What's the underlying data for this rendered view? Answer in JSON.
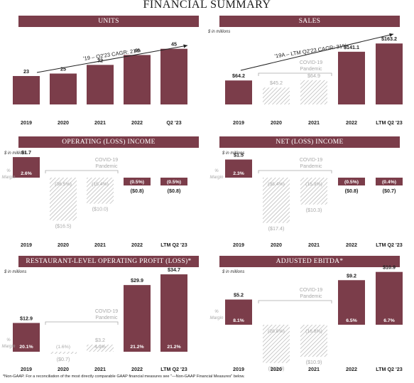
{
  "page": {
    "title": "FINANCIAL SUMMARY",
    "footnote": "*Non-GAAP. For a reconciliation of the most directly comparable GAAP financial measures see \"—Non-GAAP Financial Measures\" below."
  },
  "colors": {
    "bar": "#7b3d4a",
    "banner": "#7b3d4a",
    "hatch": "#b5b5b5",
    "muted_text": "#a8a8a8"
  },
  "chart_data": [
    {
      "id": "units",
      "type": "bar",
      "title": "UNITS",
      "units_label": "",
      "categories": [
        "2019",
        "2020",
        "2021",
        "2022",
        "Q2 '23"
      ],
      "values": [
        23,
        25,
        32,
        40,
        45
      ],
      "labels": [
        "23",
        "25",
        "32",
        "40",
        "45"
      ],
      "hatched": [
        false,
        false,
        false,
        false,
        false
      ],
      "ylim": [
        0,
        50
      ],
      "annotation": "'19 – Q2'23 CAGR: 21%",
      "covid_label": "",
      "margin_header": [],
      "margins": []
    },
    {
      "id": "sales",
      "type": "bar",
      "title": "SALES",
      "units_label": "$ in millions",
      "categories": [
        "2019",
        "2020",
        "2021",
        "2022",
        "LTM Q2 '23"
      ],
      "values": [
        64.2,
        45.2,
        64.9,
        141.1,
        163.2
      ],
      "labels": [
        "$64.2",
        "$45.2",
        "$64.9",
        "$141.1",
        "$163.2"
      ],
      "hatched": [
        false,
        true,
        true,
        false,
        false
      ],
      "ylim": [
        0,
        175
      ],
      "annotation": "'19A – LTM Q2'23 CAGR: 31%",
      "covid_label": "COVID-19 Pandemic",
      "margin_header": [],
      "margins": []
    },
    {
      "id": "operating-income",
      "type": "bar",
      "title": "OPERATING (LOSS) INCOME",
      "units_label": "$ in millions",
      "categories": [
        "2019",
        "2020",
        "2021",
        "2022",
        "LTM Q2 '23"
      ],
      "values": [
        1.7,
        -16.5,
        -10.0,
        -0.8,
        -0.8
      ],
      "labels": [
        "$1.7",
        "($16.5)",
        "($10.0)",
        "($0.8)",
        "($0.8)"
      ],
      "hatched": [
        false,
        true,
        true,
        false,
        false
      ],
      "ylim": [
        -18,
        2
      ],
      "annotation": "",
      "covid_label": "COVID-19 Pandemic",
      "margin_header": [
        "%",
        "Margin"
      ],
      "margins": [
        "2.6%",
        "(36.5%)",
        "(15.4%)",
        "(0.5%)",
        "(0.5%)"
      ]
    },
    {
      "id": "net-income",
      "type": "bar",
      "title": "NET (LOSS) INCOME",
      "units_label": "$ in millions",
      "categories": [
        "2019",
        "2020",
        "2021",
        "2022",
        "LTM Q2 '23"
      ],
      "values": [
        1.5,
        -17.4,
        -10.3,
        -0.8,
        -0.7
      ],
      "labels": [
        "$1.5",
        "($17.4)",
        "($10.3)",
        "($0.8)",
        "($0.7)"
      ],
      "hatched": [
        false,
        true,
        true,
        false,
        false
      ],
      "ylim": [
        -18,
        2
      ],
      "annotation": "",
      "covid_label": "COVID-19 Pandemic",
      "margin_header": [
        "%",
        "Margin"
      ],
      "margins": [
        "2.3%",
        "(38.4%)",
        "(15.9%)",
        "(0.5%)",
        "(0.4%)"
      ]
    },
    {
      "id": "restaurant-level-operating-profit",
      "type": "bar",
      "title": "RESTAURANT-LEVEL OPERATING PROFIT (LOSS)*",
      "units_label": "$ in millions",
      "categories": [
        "2019",
        "2020",
        "2021",
        "2022",
        "LTM Q2 '23"
      ],
      "values": [
        12.9,
        -0.7,
        3.2,
        29.9,
        34.7
      ],
      "labels": [
        "$12.9",
        "($0.7)",
        "$3.2",
        "$29.9",
        "$34.7"
      ],
      "hatched": [
        false,
        true,
        true,
        false,
        false
      ],
      "ylim": [
        0,
        36
      ],
      "annotation": "",
      "covid_label": "COVID-19 Pandemic",
      "margin_header": [
        "%",
        "Margin"
      ],
      "margins": [
        "20.1%",
        "(1.6%)",
        "4.9%",
        "21.2%",
        "21.2%"
      ]
    },
    {
      "id": "adjusted-ebitda",
      "type": "bar",
      "title": "ADJUSTED EBITDA*",
      "units_label": "$ in millions",
      "categories": [
        "2019",
        "2020",
        "2021",
        "2022",
        "LTM Q2 '23"
      ],
      "values": [
        5.2,
        -13.0,
        -10.9,
        9.2,
        10.9
      ],
      "labels": [
        "$5.2",
        "($13.0)",
        "($10.9)",
        "$9.2",
        "$10.9"
      ],
      "hatched": [
        false,
        true,
        true,
        false,
        false
      ],
      "ylim": [
        -14,
        11
      ],
      "annotation": "",
      "covid_label": "COVID-19 Pandemic",
      "margin_header": [
        "%",
        "Margin"
      ],
      "margins": [
        "8.1%",
        "(28.8%)",
        "(16.8%)",
        "6.5%",
        "6.7%"
      ]
    }
  ]
}
